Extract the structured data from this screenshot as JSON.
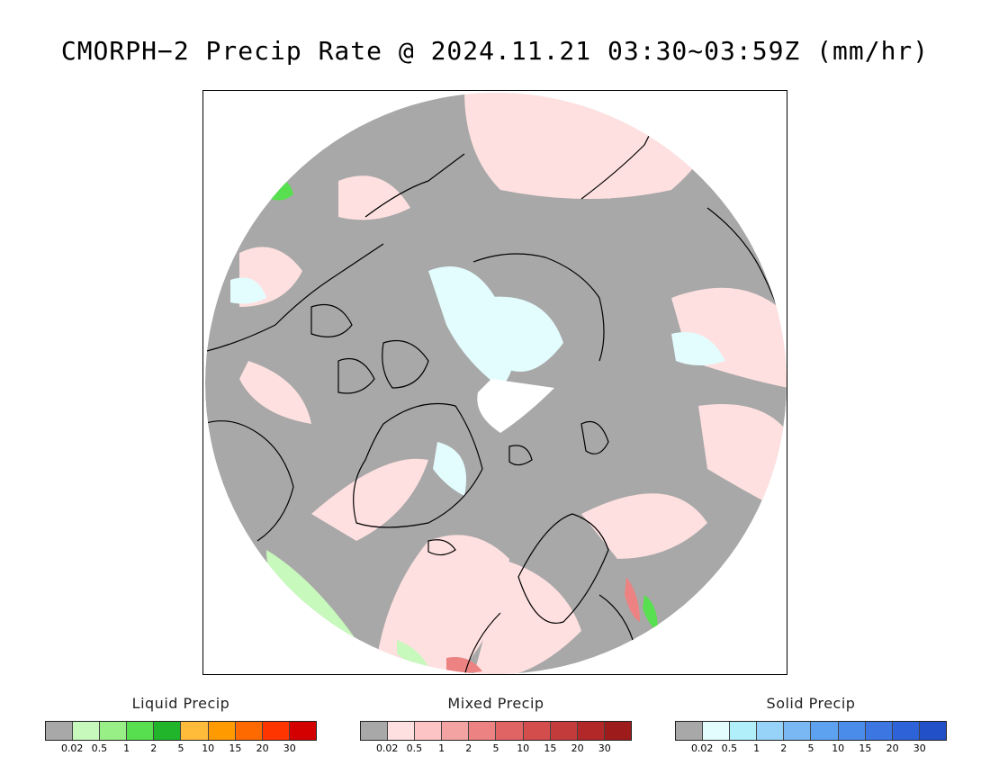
{
  "title": "CMORPH−2 Precip Rate @ 2024.11.21 03:30~03:59Z (mm/hr)",
  "colors": {
    "background": "#a8a8a8",
    "ocean_outside": "#ffffff",
    "coastline": "#000000",
    "pole_gap": "#ffffff"
  },
  "legends": [
    {
      "title": "Liquid Precip",
      "colors": [
        "#a8a8a8",
        "#c7f8bc",
        "#97ef86",
        "#58df50",
        "#20b52b",
        "#ffbb3a",
        "#ff9a00",
        "#ff6a00",
        "#ff3500",
        "#d40000"
      ],
      "ticks": [
        "0.02",
        "0.5",
        "1",
        "2",
        "5",
        "10",
        "15",
        "20",
        "30"
      ]
    },
    {
      "title": "Mixed Precip",
      "colors": [
        "#a8a8a8",
        "#ffe0e0",
        "#fcc4c4",
        "#f4a3a3",
        "#ec8282",
        "#e06464",
        "#d34d4d",
        "#c43b3b",
        "#b22828",
        "#9e1b1b"
      ],
      "ticks": [
        "0.02",
        "0.5",
        "1",
        "2",
        "5",
        "10",
        "15",
        "20",
        "30"
      ]
    },
    {
      "title": "Solid Precip",
      "colors": [
        "#a8a8a8",
        "#e3fdfe",
        "#b1effa",
        "#97d2f8",
        "#7ab8f4",
        "#5ca2f0",
        "#4a8cea",
        "#3c76e2",
        "#2e62d8",
        "#2150c8"
      ],
      "ticks": [
        "0.02",
        "0.5",
        "1",
        "2",
        "5",
        "10",
        "15",
        "20",
        "30"
      ]
    }
  ]
}
